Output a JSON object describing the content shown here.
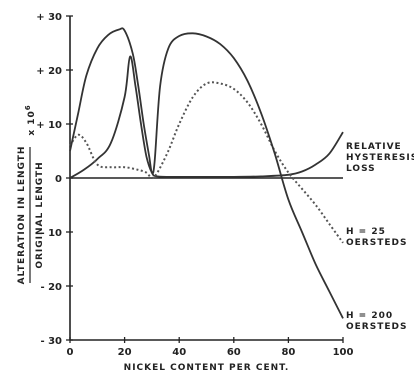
{
  "chart_data": {
    "type": "line",
    "xlabel": "NICKEL CONTENT PER CENT.",
    "ylabel_numerator": "ALTERATION IN LENGTH",
    "ylabel_denominator": "ORIGINAL LENGTH",
    "ylabel_multiplier": "x 10",
    "ylabel_exponent": "6",
    "xlim": [
      0,
      100
    ],
    "ylim": [
      -30,
      30
    ],
    "xticks": [
      0,
      20,
      40,
      60,
      80,
      100
    ],
    "xtick_labels": [
      "0",
      "20",
      "40",
      "60",
      "80",
      "100"
    ],
    "yticks": [
      30,
      20,
      10,
      0,
      -10,
      -20,
      -30
    ],
    "ytick_labels": [
      "+ 30",
      "+ 20",
      "+ 10",
      "0",
      "- 10",
      "- 20",
      "- 30"
    ],
    "series": [
      {
        "label_lines": [
          "RELATIVE",
          "HYSTERESIS",
          "LOSS"
        ],
        "style": "solid",
        "x": [
          0,
          5,
          10,
          15,
          20,
          22,
          24,
          26,
          28,
          30,
          32,
          40,
          50,
          60,
          70,
          80,
          85,
          90,
          95,
          100
        ],
        "y": [
          0,
          1.5,
          3.5,
          6.5,
          15,
          22.5,
          17,
          10,
          4,
          1,
          0.3,
          0.2,
          0.2,
          0.2,
          0.3,
          0.6,
          1.2,
          2.5,
          4.5,
          8.5
        ]
      },
      {
        "label_lines": [
          "H = 25",
          "OERSTEDS"
        ],
        "style": "dotted",
        "x": [
          0,
          3,
          6,
          10,
          15,
          20,
          25,
          28,
          30,
          32,
          36,
          40,
          45,
          50,
          55,
          60,
          65,
          70,
          75,
          80,
          85,
          90,
          95,
          100
        ],
        "y": [
          6,
          8,
          6.5,
          2.5,
          2,
          2,
          1.5,
          1,
          0,
          1,
          5,
          10,
          15,
          17.5,
          17.5,
          16.5,
          14,
          10,
          5,
          1,
          -2,
          -5,
          -8.5,
          -12
        ]
      },
      {
        "label_lines": [
          "H = 200",
          "OERSTEDS"
        ],
        "style": "solid",
        "x": [
          0,
          3,
          6,
          10,
          14,
          18,
          20,
          23,
          25,
          27,
          29,
          30,
          31,
          33,
          36,
          40,
          45,
          50,
          55,
          60,
          65,
          70,
          75,
          80,
          85,
          90,
          95,
          100
        ],
        "y": [
          5,
          12,
          19,
          24,
          26.5,
          27.5,
          27.3,
          23,
          17,
          10,
          4,
          1,
          3,
          17,
          24,
          26.3,
          26.8,
          26.2,
          24.8,
          22.2,
          18,
          12,
          4.5,
          -4,
          -10,
          -16,
          -21,
          -26
        ]
      }
    ]
  }
}
